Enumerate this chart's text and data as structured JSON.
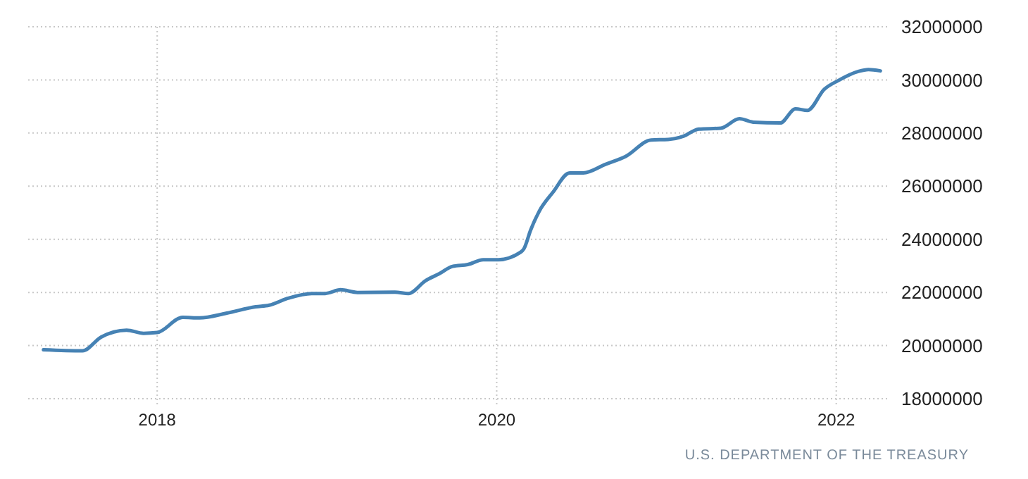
{
  "chart_data": {
    "type": "line",
    "x": [
      2017.33,
      2017.56,
      2017.67,
      2017.82,
      2017.92,
      2018.0,
      2018.15,
      2018.25,
      2018.41,
      2018.58,
      2018.66,
      2018.77,
      2018.91,
      2018.99,
      2019.08,
      2019.18,
      2019.4,
      2019.48,
      2019.58,
      2019.66,
      2019.74,
      2019.83,
      2019.92,
      2020.01,
      2020.14,
      2020.16,
      2020.2,
      2020.25,
      2020.33,
      2020.43,
      2020.51,
      2020.64,
      2020.76,
      2020.91,
      2021.01,
      2021.1,
      2021.19,
      2021.32,
      2021.43,
      2021.51,
      2021.67,
      2021.76,
      2021.83,
      2021.93,
      2022.01,
      2022.13,
      2022.19,
      2022.26
    ],
    "series": [
      {
        "color": "#4682b4",
        "values": [
          19840000,
          19800000,
          20320000,
          20580000,
          20460000,
          20490000,
          21060000,
          21040000,
          21220000,
          21460000,
          21520000,
          21780000,
          21960000,
          21960000,
          22100000,
          22000000,
          22010000,
          21960000,
          22440000,
          22700000,
          22980000,
          23050000,
          23230000,
          23230000,
          23510000,
          23640000,
          24350000,
          25050000,
          25760000,
          26500000,
          26500000,
          26820000,
          27120000,
          27740000,
          27760000,
          27880000,
          28150000,
          28180000,
          28540000,
          28410000,
          28380000,
          28910000,
          28850000,
          29650000,
          29970000,
          30320000,
          30390000,
          30340000
        ]
      }
    ],
    "xlim": [
      2017.24,
      2022.3
    ],
    "xticks": [
      2018,
      2020,
      2022
    ],
    "ylim": [
      18000000,
      32000000
    ],
    "yticks": [
      18000000,
      20000000,
      22000000,
      24000000,
      26000000,
      28000000,
      30000000,
      32000000
    ],
    "grid": true,
    "marker": "none",
    "line_style": "solid",
    "annotations": [
      "U.S. DEPARTMENT OF THE TREASURY"
    ]
  }
}
